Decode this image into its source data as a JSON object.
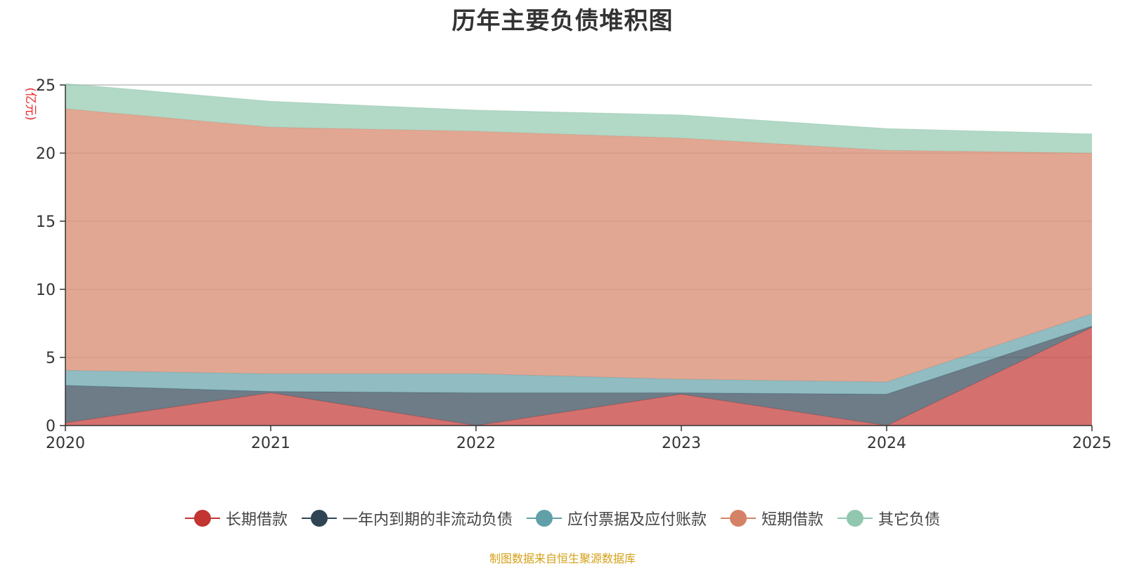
{
  "chart_data": {
    "type": "area",
    "stacked": true,
    "title": "历年主要负债堆积图",
    "ylabel": "(亿元)",
    "xlabel": "",
    "categories": [
      "2020",
      "2021",
      "2022",
      "2023",
      "2024",
      "2025"
    ],
    "ylim": [
      0,
      25
    ],
    "yticks": [
      0,
      5,
      10,
      15,
      20,
      25
    ],
    "series": [
      {
        "name": "长期借款",
        "color": "#c23531",
        "values": [
          0.2,
          2.4,
          0.0,
          2.3,
          0.0,
          7.2
        ]
      },
      {
        "name": "一年内到期的非流动负债",
        "color": "#2f4554",
        "values": [
          2.75,
          0.1,
          2.4,
          0.1,
          2.3,
          0.1
        ]
      },
      {
        "name": "应付票据及应付账款",
        "color": "#61a0a8",
        "values": [
          1.1,
          1.3,
          1.4,
          1.0,
          0.9,
          0.9
        ]
      },
      {
        "name": "短期借款",
        "color": "#d48265",
        "values": [
          19.2,
          18.1,
          17.8,
          17.7,
          17.0,
          11.8
        ]
      },
      {
        "name": "其它负债",
        "color": "#91c7ae",
        "values": [
          1.85,
          1.9,
          1.55,
          1.7,
          1.6,
          1.4
        ]
      }
    ],
    "legend_position": "bottom"
  },
  "source_text": "制图数据来自恒生聚源数据库"
}
